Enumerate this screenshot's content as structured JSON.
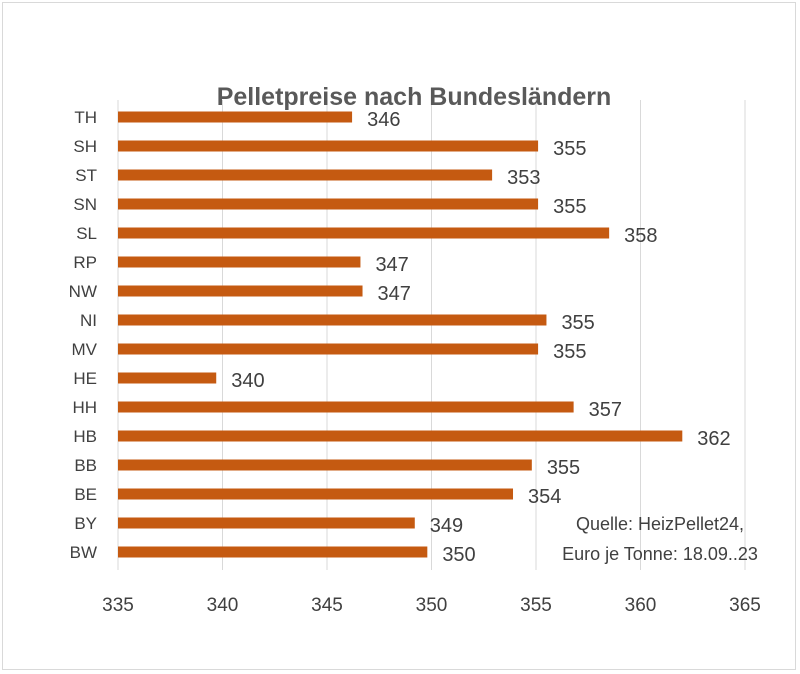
{
  "chart_data": {
    "type": "bar",
    "orientation": "horizontal",
    "title": "Pelletpreise  nach Bundesländern",
    "categories": [
      "TH",
      "SH",
      "ST",
      "SN",
      "SL",
      "RP",
      "NW",
      "NI",
      "MV",
      "HE",
      "HH",
      "HB",
      "BB",
      "BE",
      "BY",
      "BW"
    ],
    "values": [
      346.2,
      355.1,
      352.9,
      355.1,
      358.5,
      346.6,
      346.7,
      355.5,
      355.1,
      339.7,
      356.8,
      362.0,
      354.8,
      353.9,
      349.2,
      349.8
    ],
    "data_labels": [
      "346",
      "355",
      "353",
      "355",
      "358",
      "347",
      "347",
      "355",
      "355",
      "340",
      "357",
      "362",
      "355",
      "354",
      "349",
      "350"
    ],
    "xlim": [
      335,
      365
    ],
    "xticks": [
      "335",
      "340",
      "345",
      "350",
      "355",
      "360",
      "365"
    ],
    "grid": "vertical",
    "bar_color": "#C55A11",
    "annotation_lines": [
      "Quelle: HeizPellet24,",
      "Euro je Tonne: 18.09..23"
    ]
  }
}
